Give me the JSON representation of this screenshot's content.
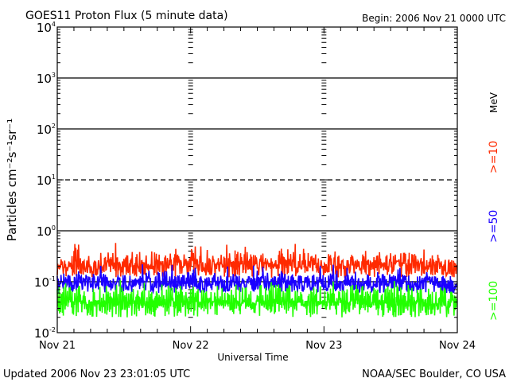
{
  "chart_data": {
    "type": "line",
    "title": "GOES11 Proton Flux (5 minute data)",
    "begin_label": "Begin: 2006 Nov 21 0000 UTC",
    "xlabel": "Universal Time",
    "ylabel": "Particles cm⁻²s⁻¹sr⁻¹",
    "yscale": "log",
    "ylim": [
      0.01,
      10000
    ],
    "y_ticks": [
      {
        "base": "10",
        "exp": "4"
      },
      {
        "base": "10",
        "exp": "3"
      },
      {
        "base": "10",
        "exp": "2"
      },
      {
        "base": "10",
        "exp": "1"
      },
      {
        "base": "10",
        "exp": "0"
      },
      {
        "base": "10",
        "exp": "-1"
      },
      {
        "base": "10",
        "exp": "-2"
      }
    ],
    "x_ticks": [
      "Nov 21",
      "Nov 22",
      "Nov 23",
      "Nov 24"
    ],
    "xlim_hours": [
      0,
      72
    ],
    "grid": "solid lines at 10^3, 10^2, 10^0, 10^-1; dashed at 10^1",
    "legend_placement": "right",
    "legend_unit": "MeV",
    "series": [
      {
        "name": ">=10",
        "color": "#ff2a00",
        "floor": 0.12,
        "values": [
          0.3,
          0.35,
          0.4,
          0.6,
          0.3,
          0.35,
          0.3,
          0.4,
          0.32,
          0.38,
          0.42,
          0.3,
          0.35,
          0.4,
          0.45,
          0.3,
          0.38,
          0.45,
          0.4,
          0.35,
          0.4,
          0.45,
          0.42,
          0.38,
          0.5,
          0.4,
          0.35,
          0.3,
          0.38,
          0.35,
          0.42,
          0.4,
          0.45,
          0.4,
          0.38,
          0.35,
          0.4,
          0.42,
          0.45,
          0.4,
          0.5,
          0.45,
          0.4,
          0.35,
          0.4,
          0.38,
          0.35,
          0.4,
          0.3,
          0.35,
          0.4,
          0.35,
          0.32,
          0.38,
          0.4,
          0.42,
          0.38,
          0.4,
          0.45,
          0.4,
          0.42,
          0.45,
          0.48,
          0.4,
          0.45,
          0.42,
          0.38,
          0.35,
          0.3,
          0.3,
          0.28,
          0.32
        ]
      },
      {
        "name": ">=50",
        "color": "#1a00ff",
        "floor": 0.06,
        "values": [
          0.15,
          0.18,
          0.14,
          0.16,
          0.15,
          0.14,
          0.17,
          0.15,
          0.16,
          0.15,
          0.14,
          0.16,
          0.15,
          0.17,
          0.15,
          0.16,
          0.14,
          0.15,
          0.16,
          0.17,
          0.15,
          0.16,
          0.18,
          0.16,
          0.2,
          0.15,
          0.14,
          0.15,
          0.16,
          0.14,
          0.15,
          0.16,
          0.15,
          0.14,
          0.16,
          0.15,
          0.14,
          0.15,
          0.16,
          0.15,
          0.17,
          0.16,
          0.15,
          0.14,
          0.15,
          0.16,
          0.14,
          0.15,
          0.14,
          0.15,
          0.16,
          0.14,
          0.15,
          0.16,
          0.15,
          0.14,
          0.15,
          0.16,
          0.15,
          0.14,
          0.15,
          0.16,
          0.15,
          0.14,
          0.15,
          0.14,
          0.13,
          0.14,
          0.13,
          0.12,
          0.12,
          0.12
        ]
      },
      {
        "name": ">=100",
        "color": "#22ff00",
        "floor": 0.02,
        "values": [
          0.09,
          0.1,
          0.09,
          0.08,
          0.09,
          0.08,
          0.09,
          0.08,
          0.09,
          0.1,
          0.08,
          0.09,
          0.08,
          0.09,
          0.09,
          0.08,
          0.09,
          0.08,
          0.09,
          0.08,
          0.09,
          0.09,
          0.08,
          0.09,
          0.09,
          0.08,
          0.09,
          0.08,
          0.09,
          0.08,
          0.09,
          0.08,
          0.09,
          0.08,
          0.09,
          0.08,
          0.09,
          0.08,
          0.09,
          0.09,
          0.08,
          0.09,
          0.08,
          0.09,
          0.08,
          0.09,
          0.08,
          0.09,
          0.08,
          0.09,
          0.08,
          0.09,
          0.08,
          0.09,
          0.08,
          0.09,
          0.08,
          0.09,
          0.08,
          0.09,
          0.08,
          0.09,
          0.08,
          0.09,
          0.08,
          0.09,
          0.08,
          0.08,
          0.08,
          0.08,
          0.07,
          0.08
        ]
      }
    ]
  },
  "footer": {
    "updated": "Updated 2006 Nov 23 23:01:05 UTC",
    "source": "NOAA/SEC Boulder, CO USA"
  }
}
